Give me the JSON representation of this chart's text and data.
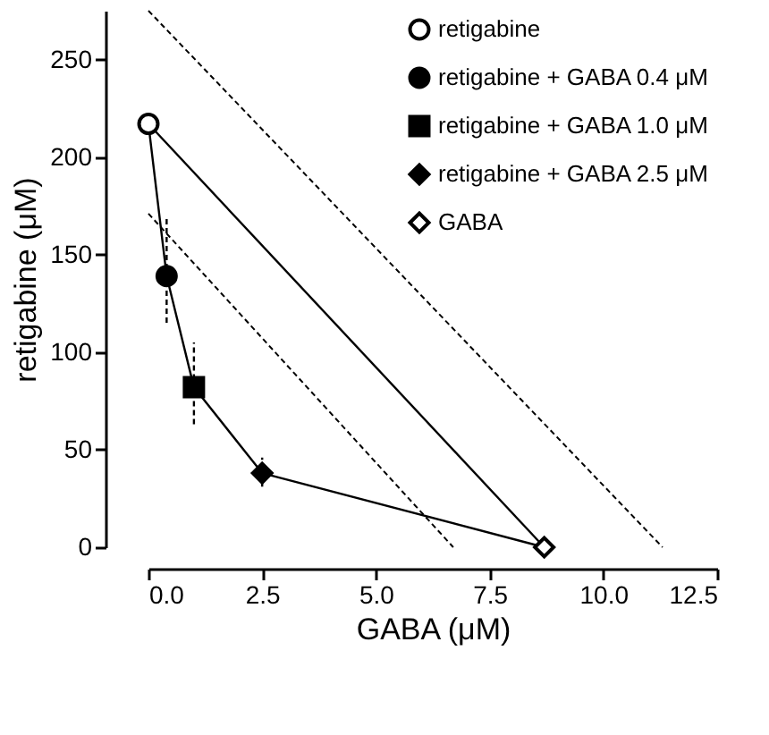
{
  "chart_data": {
    "type": "scatter",
    "xlabel": "GABA (μM)",
    "ylabel": "retigabine (μM)",
    "xlim": [
      0,
      12.5
    ],
    "ylim": [
      0,
      275
    ],
    "xticks": [
      {
        "value": 0,
        "label": "0.0"
      },
      {
        "value": 2.5,
        "label": "2.5"
      },
      {
        "value": 5,
        "label": "5.0"
      },
      {
        "value": 7.5,
        "label": "7.5"
      },
      {
        "value": 10,
        "label": "10.0"
      },
      {
        "value": 12.5,
        "label": "12.5"
      }
    ],
    "yticks": [
      0,
      50,
      100,
      150,
      200,
      250
    ],
    "grid": false,
    "legend": "top right",
    "series": [
      {
        "type": "line",
        "color": "#000000",
        "line_style": "dashed",
        "x": [
          0,
          11.3
        ],
        "values": [
          275,
          0
        ]
      },
      {
        "type": "line",
        "color": "#000000",
        "line_style": "dashed",
        "x": [
          0,
          6.7
        ],
        "values": [
          171,
          0
        ]
      },
      {
        "type": "line",
        "color": "#000000",
        "line_style": "solid",
        "x": [
          0,
          8.7
        ],
        "values": [
          217,
          0
        ]
      },
      {
        "type": "line",
        "color": "#000000",
        "line_style": "solid",
        "x": [
          0,
          0.4,
          1,
          2.5,
          8.7
        ],
        "values": [
          217,
          139,
          82,
          38,
          0
        ]
      },
      {
        "name": "retigabine",
        "marker": "circle",
        "color": "#ffffff",
        "x": [
          0
        ],
        "values": [
          217
        ]
      },
      {
        "name": "retigabine + GABA 0.4 μM",
        "marker": "circle",
        "color": "#000000",
        "x": [
          0.4
        ],
        "values": [
          139
        ],
        "errors": [
          [
            115,
            170
          ]
        ]
      },
      {
        "name": "retigabine + GABA 1.0 μM",
        "marker": "square",
        "color": "#000000",
        "x": [
          1.0
        ],
        "values": [
          82
        ],
        "errors": [
          [
            63,
            105
          ]
        ]
      },
      {
        "name": "retigabine + GABA 2.5 μM",
        "marker": "diamond",
        "color": "#000000",
        "x": [
          2.5
        ],
        "values": [
          38
        ],
        "errors": [
          [
            31,
            46
          ]
        ]
      },
      {
        "name": "GABA",
        "marker": "diamond",
        "color": "#ffffff",
        "x": [
          8.7
        ],
        "values": [
          0
        ]
      }
    ]
  }
}
